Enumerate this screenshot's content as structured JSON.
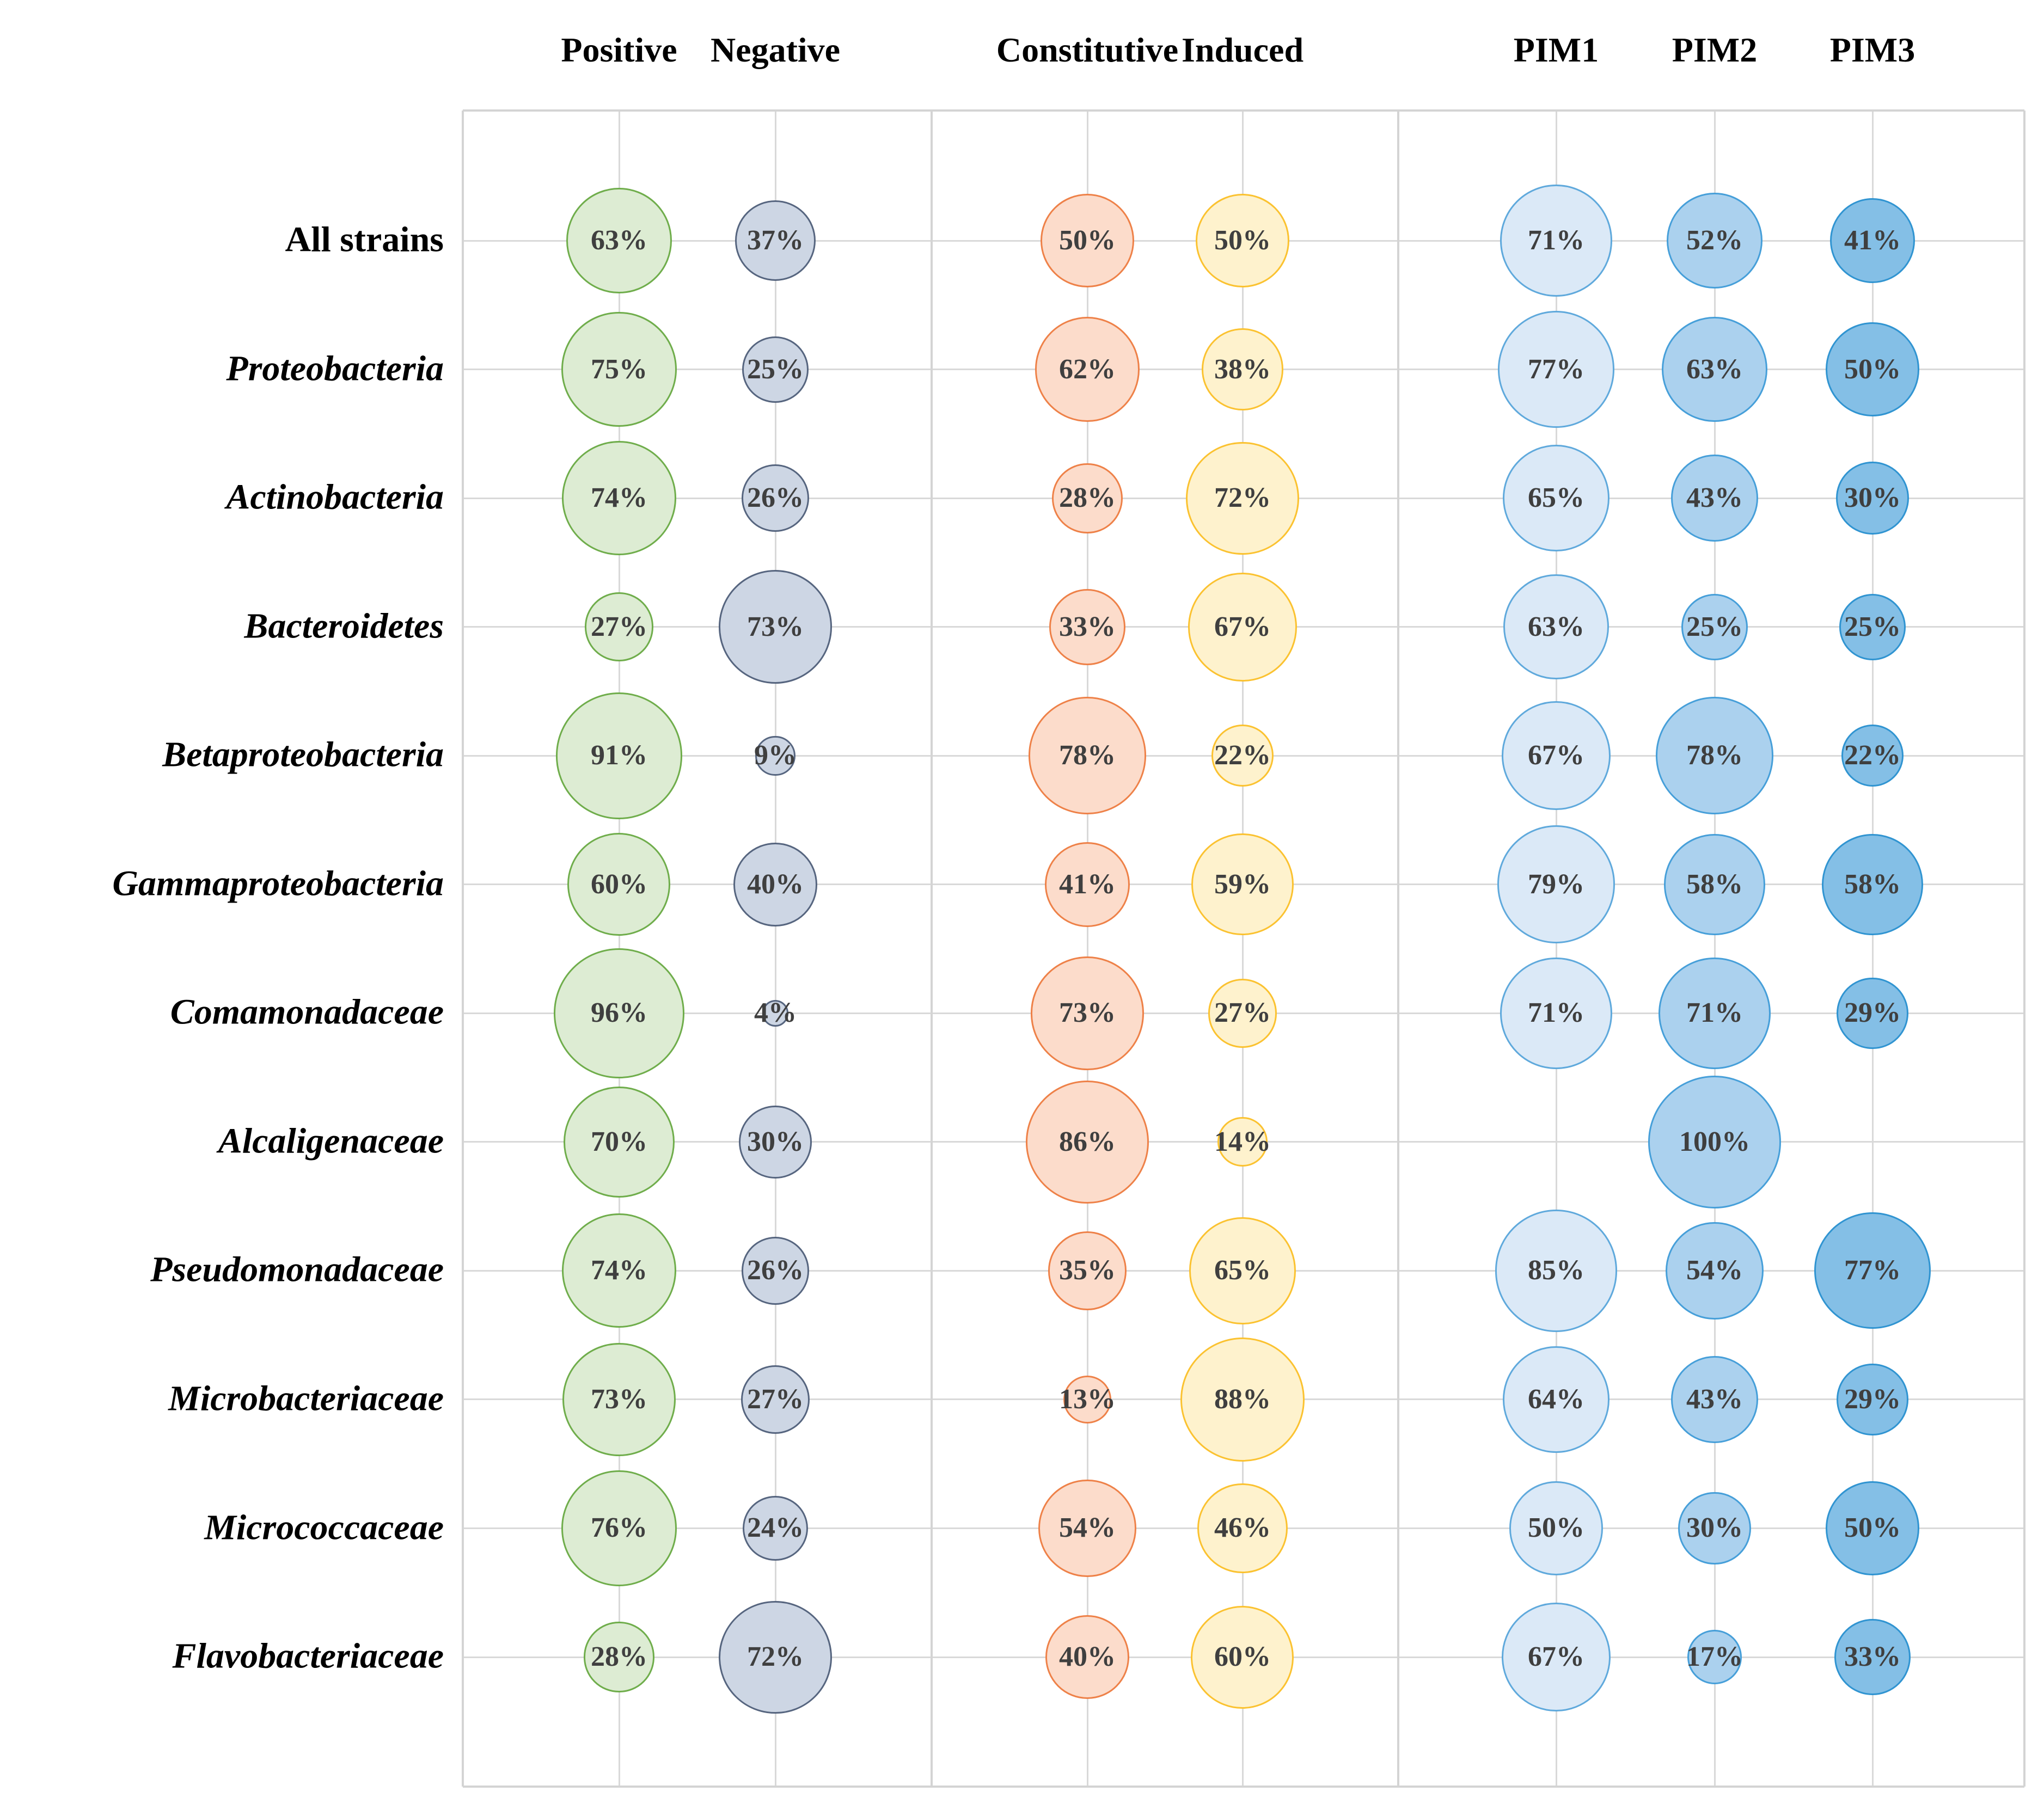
{
  "chart_data": {
    "type": "bubble",
    "title": "",
    "unit": "%",
    "size_encoding": "circle area proportional to percentage value",
    "legend_position": "none",
    "grid": {
      "show": true,
      "color": "#d9d9d9"
    },
    "value_label_suffix": "%",
    "value_label_color": "#3f3f3f",
    "columns": [
      {
        "key": "positive",
        "label": "Positive",
        "fill": "#ddecd3",
        "stroke": "#6fad4b"
      },
      {
        "key": "negative",
        "label": "Negative",
        "fill": "#cdd6e4",
        "stroke": "#56657f"
      },
      {
        "key": "constitutive",
        "label": "Constitutive",
        "fill": "#fcdccb",
        "stroke": "#ee8148"
      },
      {
        "key": "induced",
        "label": "Induced",
        "fill": "#fef2cd",
        "stroke": "#fbc230"
      },
      {
        "key": "pim1",
        "label": "PIM1",
        "fill": "#dbe9f7",
        "stroke": "#5fa9dc"
      },
      {
        "key": "pim2",
        "label": "PIM2",
        "fill": "#abd1ee",
        "stroke": "#469fd9"
      },
      {
        "key": "pim3",
        "label": "PIM3",
        "fill": "#84bfe6",
        "stroke": "#3094d1"
      }
    ],
    "panel_column_groups": [
      [
        "Positive",
        "Negative"
      ],
      [
        "Constitutive",
        "Induced"
      ],
      [
        "PIM1",
        "PIM2",
        "PIM3"
      ]
    ],
    "rows": [
      {
        "label": "All strains",
        "italic": false,
        "values": [
          63,
          37,
          50,
          50,
          71,
          52,
          41
        ]
      },
      {
        "label": "Proteobacteria",
        "italic": true,
        "values": [
          75,
          25,
          62,
          38,
          77,
          63,
          50
        ]
      },
      {
        "label": "Actinobacteria",
        "italic": true,
        "values": [
          74,
          26,
          28,
          72,
          65,
          43,
          30
        ]
      },
      {
        "label": "Bacteroidetes",
        "italic": true,
        "values": [
          27,
          73,
          33,
          67,
          63,
          25,
          25
        ]
      },
      {
        "label": "Betaproteobacteria",
        "italic": true,
        "values": [
          91,
          9,
          78,
          22,
          67,
          78,
          22
        ]
      },
      {
        "label": "Gammaproteobacteria",
        "italic": true,
        "values": [
          60,
          40,
          41,
          59,
          79,
          58,
          58
        ]
      },
      {
        "label": "Comamonadaceae",
        "italic": true,
        "values": [
          96,
          4,
          73,
          27,
          71,
          71,
          29
        ]
      },
      {
        "label": "Alcaligenaceae",
        "italic": true,
        "values": [
          70,
          30,
          86,
          14,
          null,
          100,
          null
        ]
      },
      {
        "label": "Pseudomonadaceae",
        "italic": true,
        "values": [
          74,
          26,
          35,
          65,
          85,
          54,
          77
        ]
      },
      {
        "label": "Microbacteriaceae",
        "italic": true,
        "values": [
          73,
          27,
          13,
          88,
          64,
          43,
          29
        ]
      },
      {
        "label": "Micrococcaceae",
        "italic": true,
        "values": [
          76,
          24,
          54,
          46,
          50,
          30,
          50
        ]
      },
      {
        "label": "Flavobacteriaceae",
        "italic": true,
        "values": [
          28,
          72,
          40,
          60,
          67,
          17,
          33
        ]
      }
    ]
  }
}
